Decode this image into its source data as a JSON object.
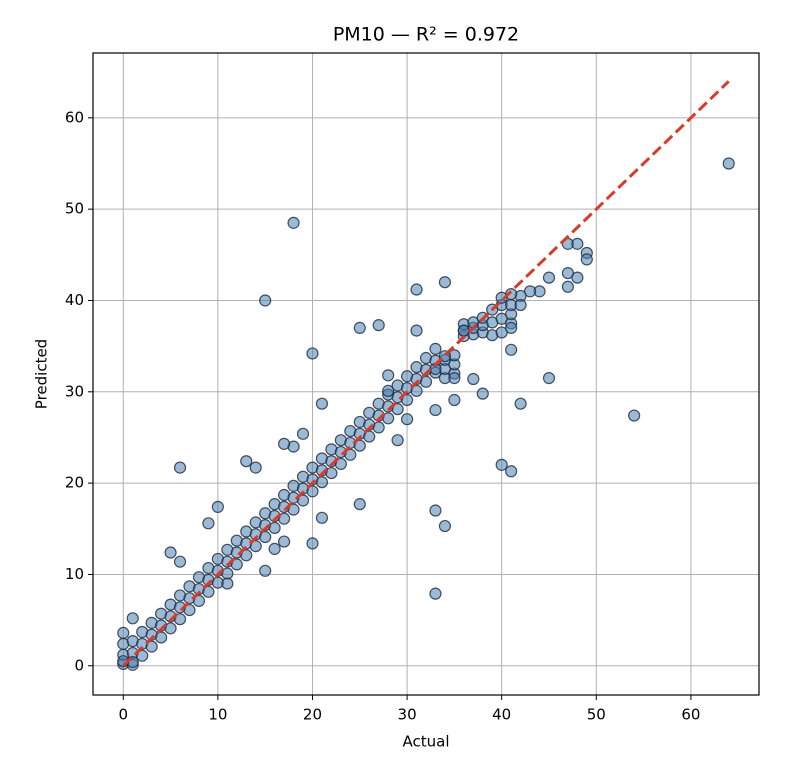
{
  "chart_data": {
    "type": "scatter",
    "title": "PM10 — R² = 0.972",
    "x_label": "Actual",
    "y_label": "Predicted",
    "x": [
      0,
      0,
      0,
      1,
      1,
      1,
      2,
      2,
      2,
      3,
      3,
      3,
      4,
      4,
      4,
      5,
      5,
      5,
      6,
      6,
      6,
      7,
      7,
      7,
      8,
      8,
      8,
      9,
      9,
      9,
      10,
      10,
      10,
      11,
      11,
      11,
      12,
      12,
      12,
      13,
      13,
      13,
      14,
      14,
      14,
      15,
      15,
      15,
      16,
      16,
      16,
      17,
      17,
      17,
      18,
      18,
      18,
      19,
      19,
      19,
      20,
      20,
      20,
      21,
      21,
      21,
      22,
      22,
      22,
      23,
      23,
      23,
      24,
      24,
      24,
      25,
      25,
      25,
      26,
      26,
      26,
      27,
      27,
      27,
      28,
      28,
      28,
      29,
      29,
      29,
      30,
      30,
      30,
      31,
      31,
      31,
      32,
      32,
      32,
      33,
      33,
      33,
      34,
      34,
      34,
      35,
      35,
      35,
      36,
      36,
      36,
      37,
      37,
      37,
      38,
      38,
      38,
      39,
      39,
      39,
      40,
      40,
      40,
      41,
      41,
      41,
      18,
      15,
      20,
      6,
      33,
      34,
      33,
      40,
      41,
      54,
      64,
      45,
      42,
      31,
      34,
      25,
      27,
      31,
      13,
      14,
      10,
      9,
      5,
      6,
      47,
      48,
      49,
      49,
      47,
      48,
      47,
      45,
      44,
      43,
      42,
      41,
      40,
      38,
      37,
      35,
      35,
      33,
      36,
      41,
      41,
      42,
      21,
      20,
      21,
      25,
      16,
      17,
      15,
      11,
      18,
      19,
      17,
      28,
      28,
      30,
      29,
      33,
      34,
      1,
      0,
      0,
      1
    ],
    "values": [
      0.2,
      1.2,
      2.4,
      0.1,
      1.4,
      2.7,
      1.1,
      2.4,
      3.7,
      2.1,
      3.4,
      4.7,
      3.1,
      4.4,
      5.7,
      4.1,
      5.4,
      6.7,
      5.1,
      6.4,
      7.7,
      6.1,
      7.4,
      8.7,
      7.1,
      8.4,
      9.7,
      8.1,
      9.4,
      10.7,
      9.1,
      10.4,
      11.7,
      10.1,
      11.4,
      12.7,
      11.1,
      12.4,
      13.7,
      12.1,
      13.4,
      14.7,
      13.1,
      14.4,
      15.7,
      14.1,
      15.4,
      16.7,
      15.1,
      16.4,
      17.7,
      16.1,
      17.4,
      18.7,
      17.1,
      18.4,
      19.7,
      18.1,
      19.4,
      20.7,
      19.1,
      20.4,
      21.7,
      20.1,
      21.4,
      22.7,
      21.1,
      22.4,
      23.7,
      22.1,
      23.4,
      24.7,
      23.1,
      24.4,
      25.7,
      24.1,
      25.4,
      26.7,
      25.1,
      26.4,
      27.7,
      26.1,
      27.4,
      28.7,
      27.1,
      28.4,
      29.7,
      28.1,
      29.4,
      30.7,
      29.1,
      30.4,
      31.7,
      30.1,
      31.4,
      32.7,
      31.1,
      32.4,
      33.7,
      32.1,
      33.4,
      34.7,
      31.5,
      32.5,
      33.5,
      32,
      33,
      34,
      36.1,
      36.7,
      37.4,
      36.3,
      37,
      37.6,
      36.5,
      37.3,
      38.1,
      36.2,
      37.6,
      39,
      36.5,
      38,
      39.5,
      37.5,
      38.5,
      39.5,
      48.5,
      40,
      34.2,
      21.7,
      7.9,
      15.3,
      17,
      22,
      21.3,
      27.4,
      55,
      31.5,
      28.7,
      41.2,
      42,
      37,
      37.3,
      36.7,
      22.4,
      21.7,
      17.4,
      15.6,
      12.4,
      11.4,
      46.2,
      46.2,
      45.2,
      44.5,
      43,
      42.5,
      41.5,
      42.5,
      41,
      41,
      40.5,
      40.7,
      40.3,
      29.8,
      31.4,
      29.1,
      31.5,
      28,
      36.7,
      34.6,
      37,
      39.5,
      28.7,
      13.4,
      16.2,
      17.7,
      12.8,
      13.6,
      10.4,
      9,
      24,
      25.4,
      24.3,
      31.8,
      30.1,
      27,
      24.7,
      32.5,
      33.9,
      0.4,
      0.5,
      3.6,
      5.2
    ],
    "color": "#4a7fb5",
    "fit_line": {
      "x": [
        0,
        64
      ],
      "values": [
        0,
        64
      ],
      "color": "#d93b2b"
    },
    "xlim": [
      -3.2,
      67.2
    ],
    "ylim": [
      -3.2,
      67.1
    ],
    "xticks": [
      0,
      10,
      20,
      30,
      40,
      50,
      60
    ],
    "yticks": [
      0,
      10,
      20,
      30,
      40,
      50,
      60
    ],
    "grid": true
  }
}
